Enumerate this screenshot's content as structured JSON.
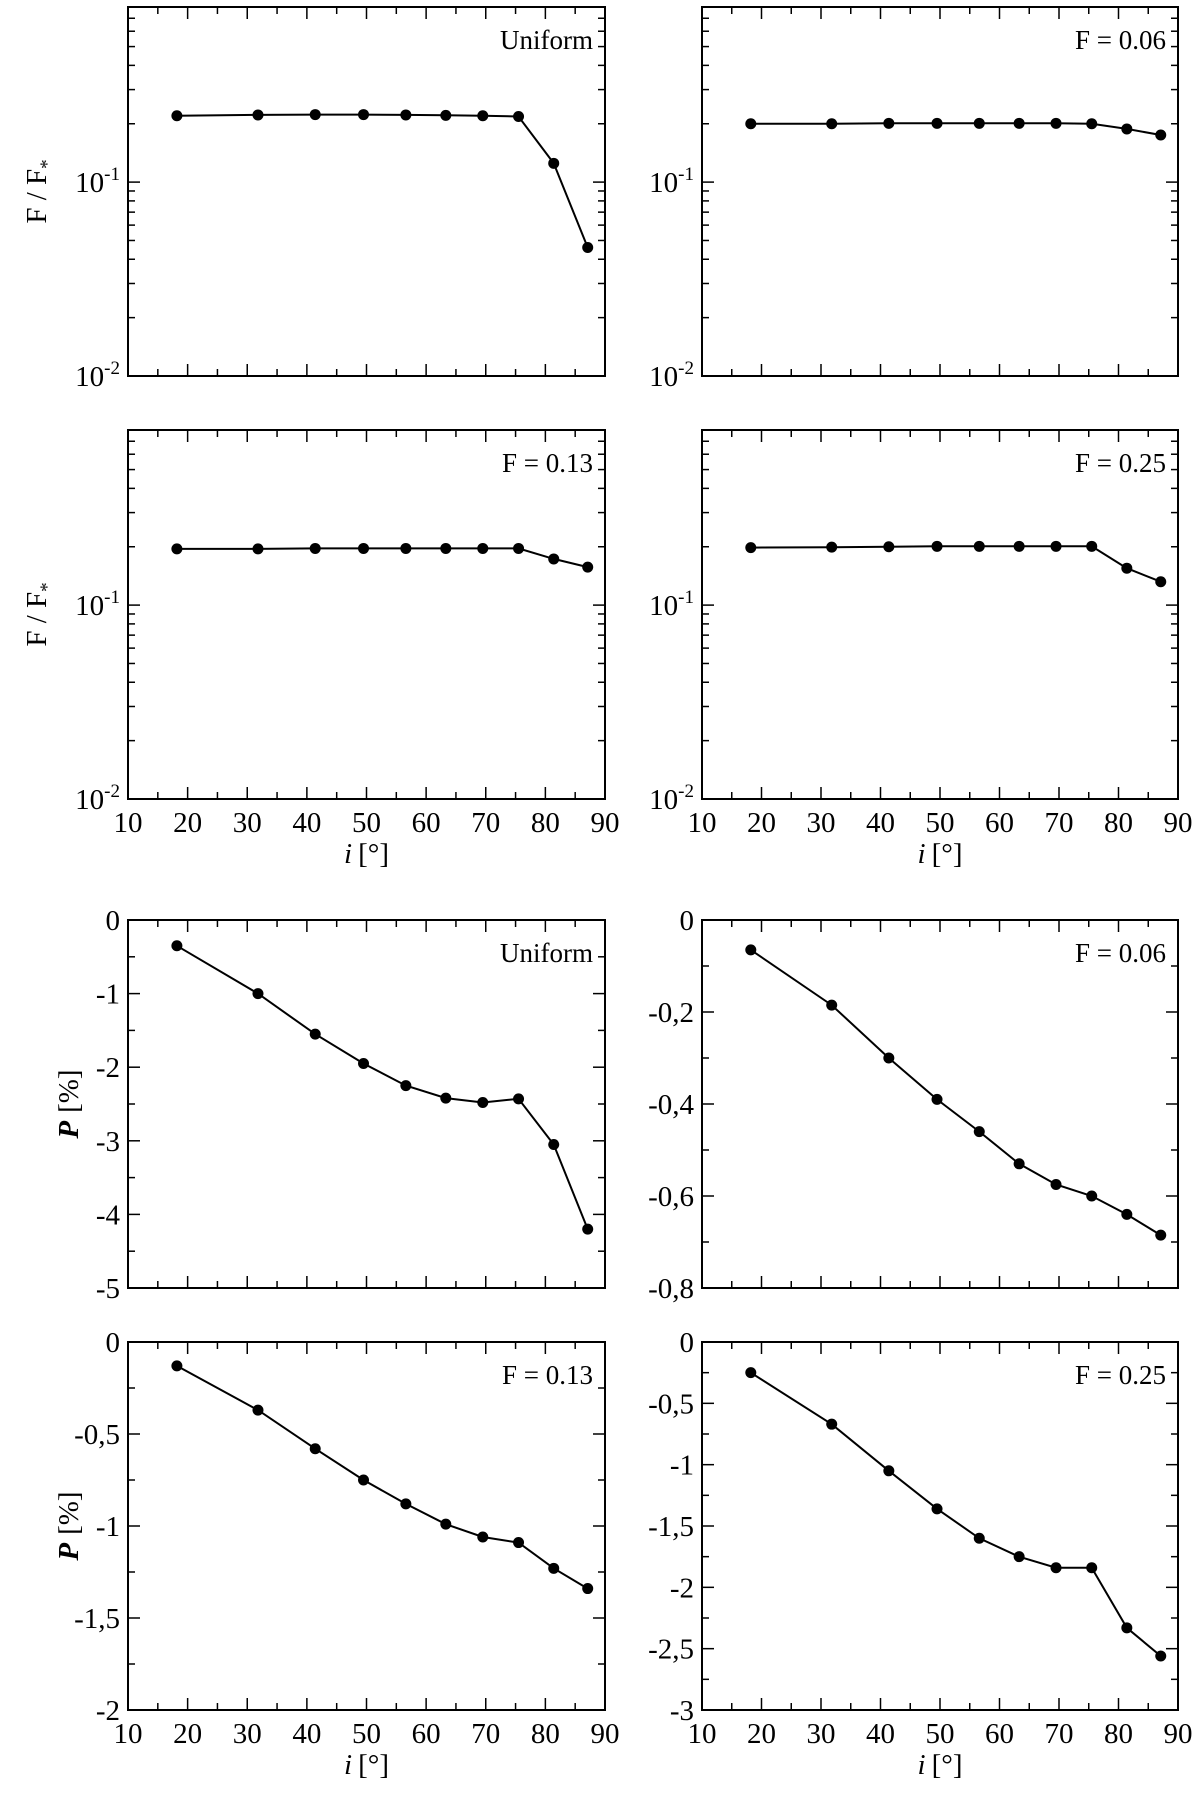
{
  "chart_data": [
    {
      "type": "line",
      "group": "flux",
      "annotation": "Uniform",
      "ylabel_main": "F / F",
      "ylabel_sub": "*",
      "yscale": "log",
      "ylim": [
        0.01,
        0.8
      ],
      "yticks": [
        {
          "base": "10",
          "exp": "-1",
          "value": 0.1
        },
        {
          "base": "10",
          "exp": "-2",
          "value": 0.01
        }
      ],
      "xlim": [
        10,
        90
      ],
      "x": [
        18.2,
        31.8,
        41.4,
        49.5,
        56.6,
        63.3,
        69.5,
        75.5,
        81.4,
        87.1
      ],
      "y": [
        0.22,
        0.222,
        0.223,
        0.223,
        0.222,
        0.221,
        0.22,
        0.218,
        0.125,
        0.046
      ]
    },
    {
      "type": "line",
      "group": "flux",
      "annotation": "F = 0.06",
      "ylabel_main": "",
      "ylabel_sub": "",
      "yscale": "log",
      "ylim": [
        0.01,
        0.8
      ],
      "yticks": [
        {
          "base": "10",
          "exp": "-1",
          "value": 0.1
        },
        {
          "base": "10",
          "exp": "-2",
          "value": 0.01
        }
      ],
      "xlim": [
        10,
        90
      ],
      "x": [
        18.2,
        31.8,
        41.4,
        49.5,
        56.6,
        63.3,
        69.5,
        75.5,
        81.4,
        87.1
      ],
      "y": [
        0.2,
        0.2,
        0.201,
        0.201,
        0.201,
        0.201,
        0.201,
        0.2,
        0.188,
        0.175
      ]
    },
    {
      "type": "line",
      "group": "flux",
      "annotation": "F = 0.13",
      "ylabel_main": "F / F",
      "ylabel_sub": "*",
      "yscale": "log",
      "ylim": [
        0.01,
        0.8
      ],
      "yticks": [
        {
          "base": "10",
          "exp": "-1",
          "value": 0.1
        },
        {
          "base": "10",
          "exp": "-2",
          "value": 0.01
        }
      ],
      "xlim": [
        10,
        90
      ],
      "x": [
        18.2,
        31.8,
        41.4,
        49.5,
        56.6,
        63.3,
        69.5,
        75.5,
        81.4,
        87.1
      ],
      "y": [
        0.195,
        0.195,
        0.196,
        0.196,
        0.196,
        0.196,
        0.196,
        0.196,
        0.173,
        0.157
      ]
    },
    {
      "type": "line",
      "group": "flux",
      "annotation": "F = 0.25",
      "ylabel_main": "",
      "ylabel_sub": "",
      "yscale": "log",
      "ylim": [
        0.01,
        0.8
      ],
      "yticks": [
        {
          "base": "10",
          "exp": "-1",
          "value": 0.1
        },
        {
          "base": "10",
          "exp": "-2",
          "value": 0.01
        }
      ],
      "xlim": [
        10,
        90
      ],
      "x": [
        18.2,
        31.8,
        41.4,
        49.5,
        56.6,
        63.3,
        69.5,
        75.5,
        81.4,
        87.1
      ],
      "y": [
        0.198,
        0.199,
        0.2,
        0.201,
        0.201,
        0.201,
        0.201,
        0.201,
        0.155,
        0.132
      ]
    },
    {
      "type": "line",
      "group": "pol",
      "annotation": "Uniform",
      "ylabel_main": "P",
      "ylabel_sub": "[%]",
      "yscale": "linear",
      "ylim": [
        -5,
        0
      ],
      "yticks": [
        {
          "label": "0",
          "value": 0
        },
        {
          "label": "-1",
          "value": -1
        },
        {
          "label": "-2",
          "value": -2
        },
        {
          "label": "-3",
          "value": -3
        },
        {
          "label": "-4",
          "value": -4
        },
        {
          "label": "-5",
          "value": -5
        }
      ],
      "xlim": [
        10,
        90
      ],
      "x": [
        18.2,
        31.8,
        41.4,
        49.5,
        56.6,
        63.3,
        69.5,
        75.5,
        81.4,
        87.1
      ],
      "y": [
        -0.35,
        -1.0,
        -1.55,
        -1.95,
        -2.25,
        -2.42,
        -2.48,
        -2.43,
        -3.05,
        -4.2
      ]
    },
    {
      "type": "line",
      "group": "pol",
      "annotation": "F = 0.06",
      "ylabel_main": "",
      "ylabel_sub": "",
      "yscale": "linear",
      "ylim": [
        -0.8,
        0
      ],
      "yticks": [
        {
          "label": "0",
          "value": 0
        },
        {
          "label": "-0,2",
          "value": -0.2
        },
        {
          "label": "-0,4",
          "value": -0.4
        },
        {
          "label": "-0,6",
          "value": -0.6
        },
        {
          "label": "-0,8",
          "value": -0.8
        }
      ],
      "xlim": [
        10,
        90
      ],
      "x": [
        18.2,
        31.8,
        41.4,
        49.5,
        56.6,
        63.3,
        69.5,
        75.5,
        81.4,
        87.1
      ],
      "y": [
        -0.065,
        -0.185,
        -0.3,
        -0.39,
        -0.46,
        -0.53,
        -0.575,
        -0.6,
        -0.64,
        -0.685
      ]
    },
    {
      "type": "line",
      "group": "pol",
      "annotation": "F = 0.13",
      "ylabel_main": "P",
      "ylabel_sub": "[%]",
      "yscale": "linear",
      "ylim": [
        -2,
        0
      ],
      "yticks": [
        {
          "label": "0",
          "value": 0
        },
        {
          "label": "-0,5",
          "value": -0.5
        },
        {
          "label": "-1",
          "value": -1
        },
        {
          "label": "-1,5",
          "value": -1.5
        },
        {
          "label": "-2",
          "value": -2
        }
      ],
      "xlim": [
        10,
        90
      ],
      "xlabel_main": "i",
      "xlabel_unit": "[°]",
      "xticks": [
        "10",
        "20",
        "30",
        "40",
        "50",
        "60",
        "70",
        "80",
        "90"
      ],
      "x": [
        18.2,
        31.8,
        41.4,
        49.5,
        56.6,
        63.3,
        69.5,
        75.5,
        81.4,
        87.1
      ],
      "y": [
        -0.13,
        -0.37,
        -0.58,
        -0.75,
        -0.88,
        -0.99,
        -1.06,
        -1.09,
        -1.23,
        -1.34
      ]
    },
    {
      "type": "line",
      "group": "pol",
      "annotation": "F = 0.25",
      "ylabel_main": "",
      "ylabel_sub": "",
      "yscale": "linear",
      "ylim": [
        -3,
        0
      ],
      "yticks": [
        {
          "label": "0",
          "value": 0
        },
        {
          "label": "-0,5",
          "value": -0.5
        },
        {
          "label": "-1",
          "value": -1
        },
        {
          "label": "-1,5",
          "value": -1.5
        },
        {
          "label": "-2",
          "value": -2
        },
        {
          "label": "-2,5",
          "value": -2.5
        },
        {
          "label": "-3",
          "value": -3
        }
      ],
      "xlim": [
        10,
        90
      ],
      "xlabel_main": "i",
      "xlabel_unit": "[°]",
      "xticks": [
        "10",
        "20",
        "30",
        "40",
        "50",
        "60",
        "70",
        "80",
        "90"
      ],
      "x": [
        18.2,
        31.8,
        41.4,
        49.5,
        56.6,
        63.3,
        69.5,
        75.5,
        81.4,
        87.1
      ],
      "y": [
        -0.25,
        -0.67,
        -1.05,
        -1.36,
        -1.6,
        -1.75,
        -1.84,
        -1.84,
        -2.33,
        -2.56
      ]
    }
  ],
  "flux_xaxis": {
    "xlabel_main": "i",
    "xlabel_unit": "[°]",
    "xticks": [
      "10",
      "20",
      "30",
      "40",
      "50",
      "60",
      "70",
      "80",
      "90"
    ]
  }
}
